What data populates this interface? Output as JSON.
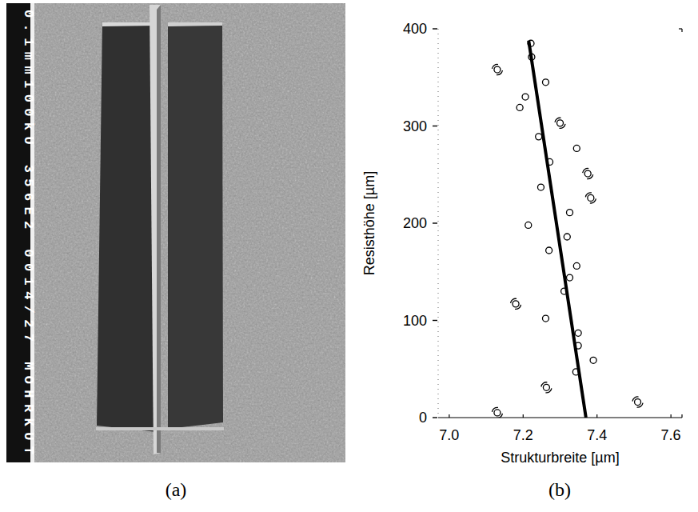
{
  "chart_data": {
    "type": "scatter",
    "x_label": "Strukturbreite [µm]",
    "y_label": "Resisthöhe [µm]",
    "xlim": [
      6.97,
      7.63
    ],
    "ylim": [
      0,
      400
    ],
    "xticks": [
      {
        "value": 7.0,
        "label": "7.0"
      },
      {
        "value": 7.2,
        "label": "7.2"
      },
      {
        "value": 7.4,
        "label": "7.4"
      },
      {
        "value": 7.6,
        "label": "7.6"
      }
    ],
    "yticks": [
      0,
      100,
      200,
      300,
      400
    ],
    "grid": false,
    "series": [
      {
        "type": "scatter",
        "marker": "circle",
        "color": "#000000",
        "x": [
          7.221,
          7.223,
          7.261,
          7.206,
          7.191,
          7.242,
          7.345,
          7.272,
          7.248,
          7.326,
          7.214,
          7.319,
          7.27,
          7.345,
          7.326,
          7.311,
          7.261,
          7.349,
          7.349,
          7.39,
          7.343
        ],
        "values": [
          385,
          371,
          345,
          330,
          319,
          289,
          277,
          263,
          237,
          211,
          198,
          186,
          172,
          156,
          144,
          130,
          102,
          87,
          74,
          59,
          47
        ]
      },
      {
        "type": "scatter",
        "marker": "double_circle",
        "color": "#000000",
        "x": [
          7.13,
          7.3,
          7.375,
          7.383,
          7.18,
          7.263,
          7.51,
          7.13
        ],
        "values": [
          358,
          303,
          251,
          226,
          117,
          31,
          16,
          5
        ]
      },
      {
        "type": "line",
        "line_style": "solid",
        "color": "#000000",
        "x": [
          7.37,
          7.215
        ],
        "values": [
          0,
          388
        ]
      }
    ]
  },
  "figure": {
    "panel_labels": [
      "(a)",
      "(b)"
    ],
    "photo_caption_bar": "0.1mm100kU 356E2 0014/27 MOHRKUT"
  }
}
